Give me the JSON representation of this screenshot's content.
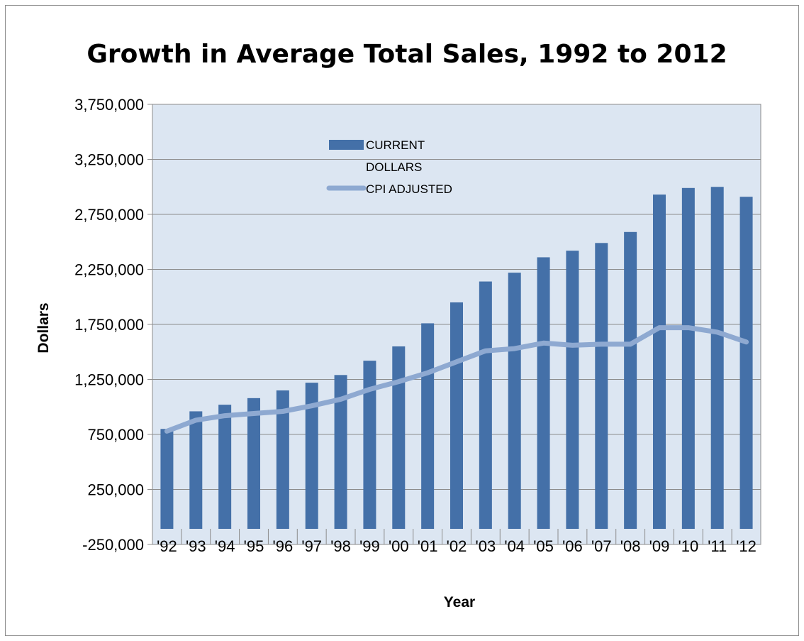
{
  "chart_data": {
    "type": "bar",
    "title": "Growth in Average Total Sales, 1992 to 2012",
    "xlabel": "Year",
    "ylabel": "Dollars",
    "categories": [
      "'92",
      "'93",
      "'94",
      "'95",
      "'96",
      "'97",
      "'98",
      "'99",
      "'00",
      "'01",
      "'02",
      "'03",
      "'04",
      "'05",
      "'06",
      "'07",
      "'08",
      "'09",
      "'10",
      "'11",
      "'12"
    ],
    "yticks": [
      "3,750,000",
      "3,250,000",
      "2,750,000",
      "2,250,000",
      "1,750,000",
      "1,250,000",
      "750,000",
      "250,000",
      "-250,000"
    ],
    "ylim": [
      -250000,
      3750000
    ],
    "grid": true,
    "legend_position": "top-center",
    "plot_background": "#dce6f2",
    "series": [
      {
        "name": "CURRENT DOLLARS",
        "legend_lines": [
          "CURRENT",
          "DOLLARS"
        ],
        "type": "bar",
        "color": "#4470a8",
        "values": [
          800000,
          960000,
          1020000,
          1080000,
          1150000,
          1220000,
          1290000,
          1420000,
          1550000,
          1760000,
          1950000,
          2140000,
          2220000,
          2360000,
          2420000,
          2490000,
          2590000,
          2930000,
          2990000,
          3000000,
          2910000
        ]
      },
      {
        "name": "CPI ADJUSTED",
        "legend_lines": [
          "CPI ADJUSTED"
        ],
        "type": "line",
        "color": "#8ea9d1",
        "values": [
          780000,
          880000,
          920000,
          940000,
          960000,
          1010000,
          1070000,
          1160000,
          1230000,
          1310000,
          1410000,
          1510000,
          1530000,
          1580000,
          1560000,
          1570000,
          1570000,
          1720000,
          1720000,
          1680000,
          1590000
        ]
      }
    ]
  }
}
